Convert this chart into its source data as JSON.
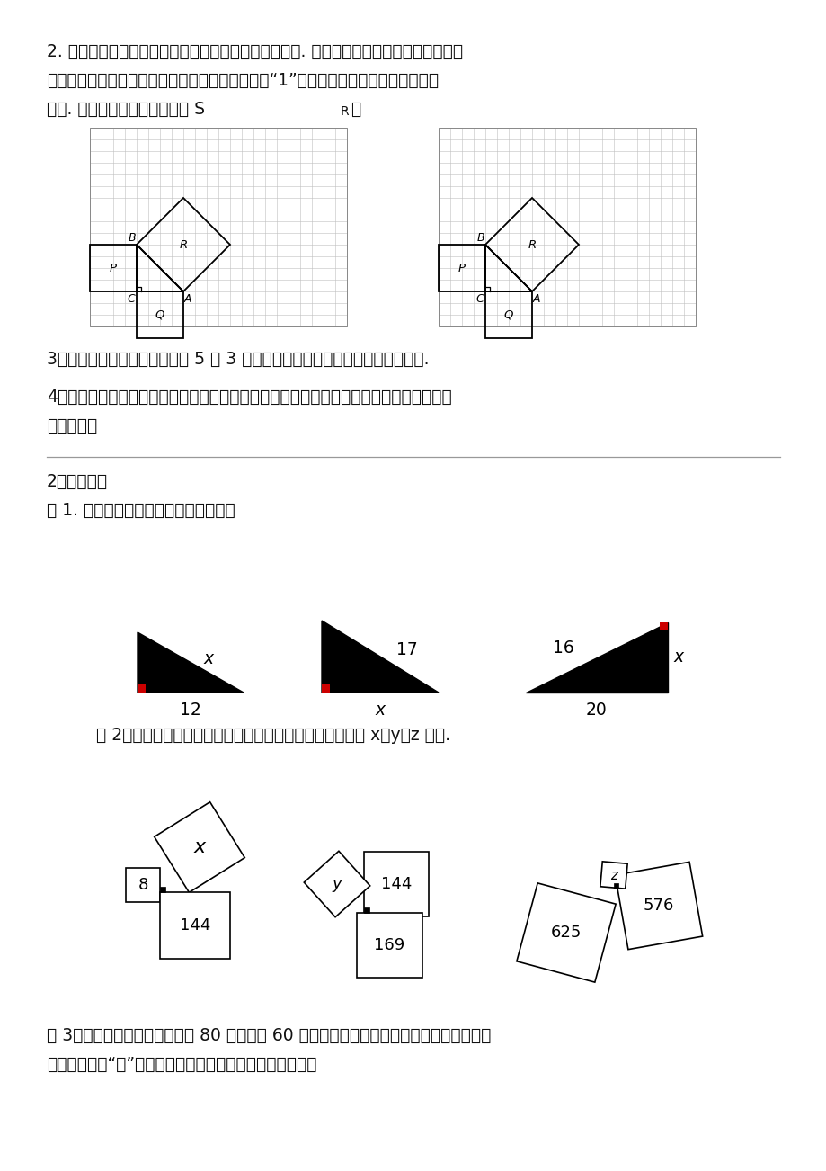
{
  "background_color": "#ffffff",
  "page_width": 9.2,
  "page_height": 13.02,
  "q2_line1": "2. 拼图活动引发我们的灵感，运算推演证实我们的猜想. 为了计算面积方便，我们可将这幅",
  "q2_line2": "图形放在方格纸中．如果每一个小方格的边长记作“1”，请你求出此时三个正方形的面",
  "q2_line3": "积，. 你是如何得到的？如何求 S",
  "q2_sr": "R",
  "q2_end": "？",
  "q3_text": "3．使照以上方法计算直角边为 5 和 3 的直角三角形中以斜边为边的正方形面积.",
  "q4_line1": "4．我们这节课是探索直角三角形三边数量关系．至此，你对直角三角形三边的数量关系有",
  "q4_line2": "什么发现？",
  "section2": "2、典型例题",
  "ex1_intro": "例 1. 求下列直角三角形中未知边的长：",
  "ex2_intro": "例 2．下列图中正方形的面积如图所示，求表示边的未知数 x、y、z 的値.",
  "ex3_line1": "例 3．算一算：如图，一块长约 80 米、宽约 60 米的长方形草坪，被不自觉的学生沿对角线",
  "ex3_line2": "踏出了一条斜“路”，类似的现象也时有发生．请问同学们："
}
